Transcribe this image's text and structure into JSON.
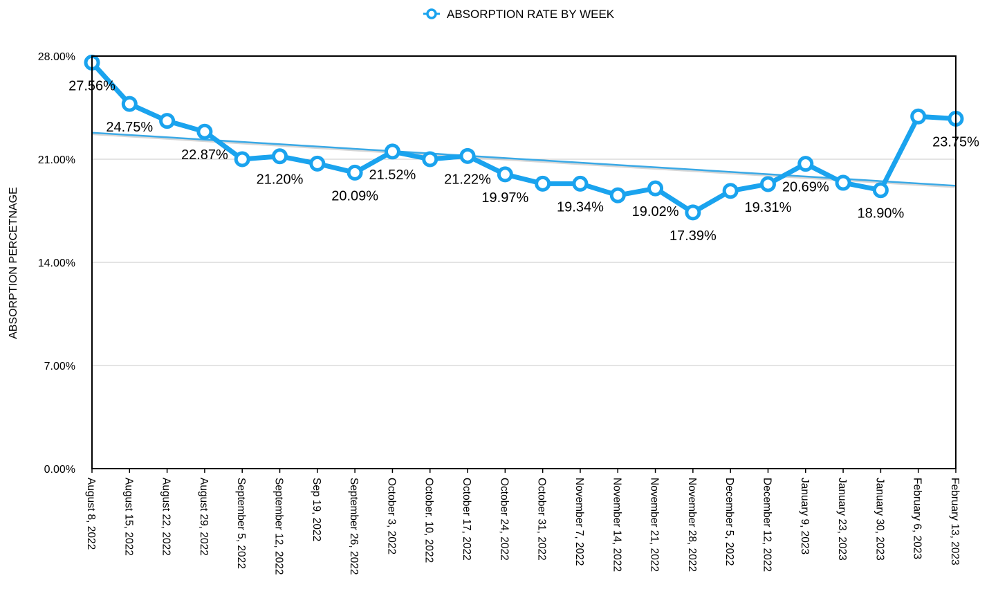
{
  "chart_data": {
    "type": "line",
    "title": "",
    "xlabel": "",
    "ylabel": "ABSORPTION PERCETNAGE",
    "ylim": [
      0,
      28
    ],
    "yticks": [
      "0.00%",
      "7.00%",
      "14.00%",
      "21.00%",
      "28.00%"
    ],
    "grid": true,
    "legend_position": "top-center",
    "colors": {
      "series": "#1aa3ee",
      "trend": "#3aa9e6"
    },
    "categories": [
      "August 8, 2022",
      "August 15, 2022",
      "August 22, 2022",
      "August 29, 2022",
      "September 5, 2022",
      "September 12, 2022",
      "Sep 19, 2022",
      "September 26, 2022",
      "October 3, 2022",
      "October. 10, 2022",
      "October 17, 2022",
      "October 24, 2022",
      "October 31, 2022",
      "November 7, 2022",
      "November 14, 2022",
      "November 21, 2022",
      "November 28, 2022",
      "December 5, 2022",
      "December 12, 2022",
      "January 9, 2023",
      "January 23, 2023",
      "January 30, 2023",
      "February 6, 2023",
      "February 13, 2023"
    ],
    "series": [
      {
        "name": "ABSORPTION RATE BY WEEK",
        "values": [
          27.56,
          24.75,
          23.6,
          22.87,
          21.0,
          21.2,
          20.7,
          20.09,
          21.52,
          21.0,
          21.22,
          19.97,
          19.34,
          19.34,
          18.55,
          19.02,
          17.39,
          18.85,
          19.31,
          20.69,
          19.4,
          18.9,
          23.9,
          23.75
        ]
      }
    ],
    "data_labels": [
      {
        "index": 0,
        "text": "27.56%"
      },
      {
        "index": 1,
        "text": "24.75%"
      },
      {
        "index": 3,
        "text": "22.87%"
      },
      {
        "index": 5,
        "text": "21.20%"
      },
      {
        "index": 7,
        "text": "20.09%"
      },
      {
        "index": 8,
        "text": "21.52%"
      },
      {
        "index": 10,
        "text": "21.22%"
      },
      {
        "index": 11,
        "text": "19.97%"
      },
      {
        "index": 13,
        "text": "19.34%"
      },
      {
        "index": 15,
        "text": "19.02%"
      },
      {
        "index": 16,
        "text": "17.39%"
      },
      {
        "index": 18,
        "text": "19.31%"
      },
      {
        "index": 19,
        "text": "20.69%"
      },
      {
        "index": 21,
        "text": "18.90%"
      },
      {
        "index": 23,
        "text": "23.75%"
      }
    ],
    "trendline": {
      "type": "linear",
      "start": 22.8,
      "end": 19.2
    }
  }
}
